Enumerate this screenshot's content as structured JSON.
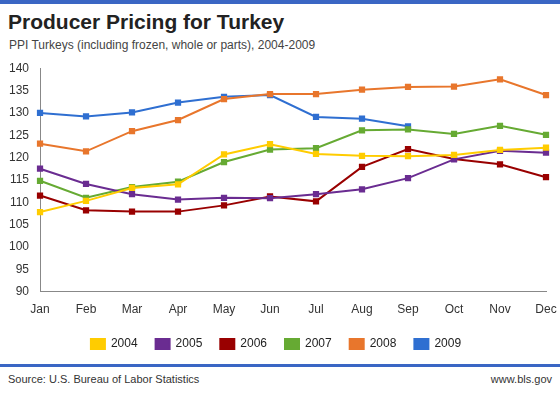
{
  "chart_data": {
    "type": "line",
    "title": "Producer Pricing for Turkey",
    "subtitle": "PPI Turkeys (including frozen, whole or parts), 2004-2009",
    "annotations": [
      "Source: U.S. Bureau of Labor Statistics",
      "www.bls.gov"
    ],
    "categories": [
      "Jan",
      "Feb",
      "Mar",
      "Apr",
      "May",
      "Jun",
      "Jul",
      "Aug",
      "Sep",
      "Oct",
      "Nov",
      "Dec"
    ],
    "series": [
      {
        "name": "2004",
        "color": "#ffcc00",
        "values": [
          107.8,
          110.3,
          113.2,
          114.0,
          120.7,
          123.0,
          120.8,
          120.4,
          120.3,
          120.6,
          121.7,
          122.2
        ]
      },
      {
        "name": "2005",
        "color": "#6a2c91",
        "values": [
          117.5,
          114.1,
          111.8,
          110.6,
          111.0,
          110.9,
          111.8,
          112.9,
          115.4,
          119.6,
          121.5,
          121.1
        ]
      },
      {
        "name": "2006",
        "color": "#990000",
        "values": [
          111.5,
          108.2,
          107.9,
          107.9,
          109.3,
          111.3,
          110.2,
          117.9,
          121.9,
          119.7,
          118.5,
          115.6
        ]
      },
      {
        "name": "2007",
        "color": "#66aa33",
        "values": [
          114.8,
          111.0,
          113.4,
          114.6,
          119.0,
          121.8,
          122.1,
          126.1,
          126.3,
          125.3,
          127.1,
          125.1
        ]
      },
      {
        "name": "2008",
        "color": "#e8762c",
        "values": [
          123.1,
          121.4,
          125.9,
          128.4,
          133.1,
          134.2,
          134.2,
          135.2,
          135.8,
          135.9,
          137.5,
          134.0
        ]
      },
      {
        "name": "2009",
        "color": "#2f6fd1",
        "values": [
          130.0,
          129.2,
          130.1,
          132.3,
          133.6,
          134.0,
          129.1,
          128.7,
          127.0,
          null,
          null,
          null
        ]
      }
    ],
    "ylim": [
      90,
      140
    ],
    "yticks": [
      90,
      95,
      100,
      105,
      110,
      115,
      120,
      125,
      130,
      135,
      140
    ],
    "grid": false,
    "legend": "bottom",
    "marker": "square"
  }
}
